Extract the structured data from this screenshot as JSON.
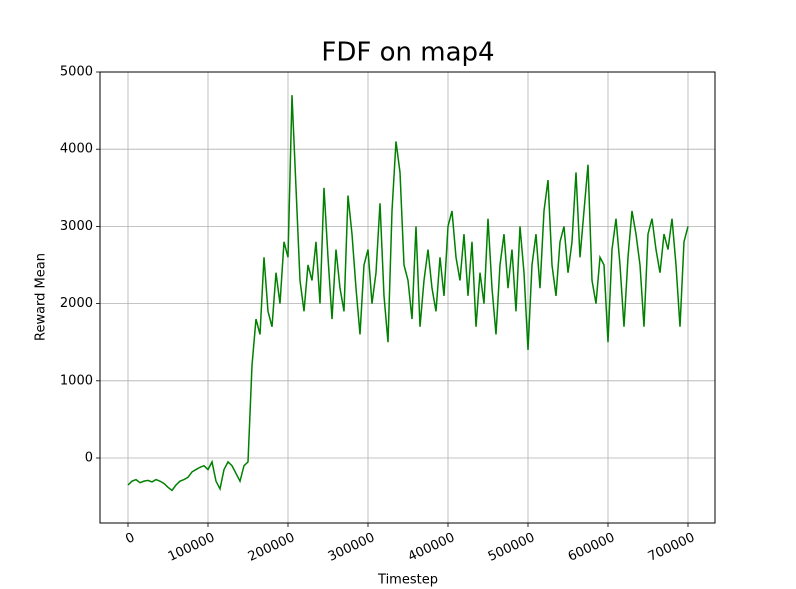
{
  "chart_data": {
    "type": "line",
    "title": "FDF on map4",
    "x_label": "Timestep",
    "y_label": "Reward Mean",
    "x": [
      0,
      5000,
      10000,
      15000,
      20000,
      25000,
      30000,
      35000,
      40000,
      45000,
      50000,
      55000,
      60000,
      65000,
      70000,
      75000,
      80000,
      85000,
      90000,
      95000,
      100000,
      105000,
      110000,
      115000,
      120000,
      125000,
      130000,
      135000,
      140000,
      145000,
      150000,
      155000,
      160000,
      165000,
      170000,
      175000,
      180000,
      185000,
      190000,
      195000,
      200000,
      205000,
      210000,
      215000,
      220000,
      225000,
      230000,
      235000,
      240000,
      245000,
      250000,
      255000,
      260000,
      265000,
      270000,
      275000,
      280000,
      285000,
      290000,
      295000,
      300000,
      305000,
      310000,
      315000,
      320000,
      325000,
      330000,
      335000,
      340000,
      345000,
      350000,
      355000,
      360000,
      365000,
      370000,
      375000,
      380000,
      385000,
      390000,
      395000,
      400000,
      405000,
      410000,
      415000,
      420000,
      425000,
      430000,
      435000,
      440000,
      445000,
      450000,
      455000,
      460000,
      465000,
      470000,
      475000,
      480000,
      485000,
      490000,
      495000,
      500000,
      505000,
      510000,
      515000,
      520000,
      525000,
      530000,
      535000,
      540000,
      545000,
      550000,
      555000,
      560000,
      565000,
      570000,
      575000,
      580000,
      585000,
      590000,
      595000,
      600000,
      605000,
      610000,
      615000,
      620000,
      625000,
      630000,
      635000,
      640000,
      645000,
      650000,
      655000,
      660000,
      665000,
      670000,
      675000,
      680000,
      685000,
      690000,
      695000,
      700000
    ],
    "series": [
      {
        "name": "Reward Mean",
        "color": "#008000",
        "values": [
          -350,
          -300,
          -280,
          -320,
          -300,
          -290,
          -310,
          -280,
          -300,
          -330,
          -380,
          -420,
          -350,
          -300,
          -280,
          -250,
          -180,
          -150,
          -120,
          -100,
          -150,
          -50,
          -300,
          -400,
          -150,
          -50,
          -100,
          -200,
          -300,
          -100,
          -50,
          1200,
          1800,
          1600,
          2600,
          1900,
          1700,
          2400,
          2000,
          2800,
          2600,
          4700,
          3500,
          2300,
          1900,
          2500,
          2300,
          2800,
          2000,
          3500,
          2600,
          1800,
          2700,
          2200,
          1900,
          3400,
          2900,
          2200,
          1600,
          2500,
          2700,
          2000,
          2400,
          3300,
          2100,
          1500,
          3200,
          4100,
          3700,
          2500,
          2300,
          1800,
          3000,
          1700,
          2300,
          2700,
          2200,
          1900,
          2600,
          2100,
          3000,
          3200,
          2600,
          2300,
          2900,
          2100,
          2800,
          1700,
          2400,
          2000,
          3100,
          2200,
          1600,
          2500,
          2900,
          2200,
          2700,
          1900,
          3000,
          2400,
          1400,
          2500,
          2900,
          2200,
          3200,
          3600,
          2500,
          2100,
          2800,
          3000,
          2400,
          2800,
          3700,
          2600,
          3200,
          3800,
          2300,
          2000,
          2600,
          2500,
          1500,
          2700,
          3100,
          2500,
          1700,
          2600,
          3200,
          2900,
          2500,
          1700,
          2900,
          3100,
          2700,
          2400,
          2900,
          2700,
          3100,
          2500,
          1700,
          2800,
          3000
        ]
      }
    ],
    "xlim": [
      -35000,
      733750
    ],
    "ylim": [
      -842,
      5000
    ],
    "xticks": [
      0,
      100000,
      200000,
      300000,
      400000,
      500000,
      600000,
      700000
    ],
    "yticks": [
      0,
      1000,
      2000,
      3000,
      4000,
      5000
    ],
    "grid": true
  }
}
